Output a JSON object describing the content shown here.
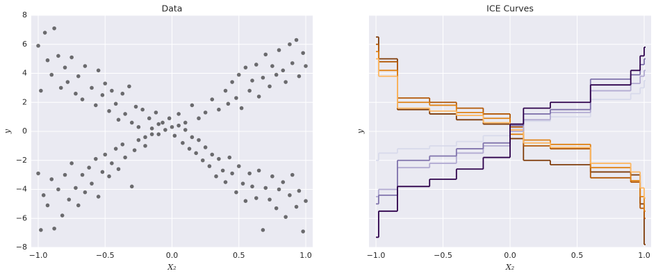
{
  "chart_data": [
    {
      "type": "scatter",
      "title": "Data",
      "xlabel": "X₂",
      "ylabel": "y",
      "xlim": [
        -1.052,
        1.052
      ],
      "ylim": [
        -8,
        8
      ],
      "grid": true,
      "point_color": "#000000",
      "point_opacity": 0.55,
      "show_ytick_labels": true,
      "xticks": [
        {
          "value": -1,
          "label": "−1.0"
        },
        {
          "value": -0.5,
          "label": "−0.5"
        },
        {
          "value": 0,
          "label": "0.0"
        },
        {
          "value": 0.5,
          "label": "0.5"
        },
        {
          "value": 1,
          "label": "1.0"
        }
      ],
      "yticks": [
        {
          "value": -8,
          "label": "−8"
        },
        {
          "value": -6,
          "label": "−6"
        },
        {
          "value": -4,
          "label": "−4"
        },
        {
          "value": -2,
          "label": "−2"
        },
        0,
        2,
        4,
        6,
        8
      ],
      "x": [
        -1.0,
        -0.98,
        -0.95,
        -0.93,
        -0.9,
        -0.88,
        -0.85,
        -0.83,
        -0.8,
        -0.78,
        -0.75,
        -0.72,
        -0.7,
        -0.67,
        -0.65,
        -0.6,
        -0.57,
        -0.55,
        -0.52,
        -0.5,
        -0.47,
        -0.45,
        -0.42,
        -0.4,
        -0.37,
        -0.35,
        -0.32,
        -0.3,
        -0.27,
        -0.25,
        -0.22,
        -0.2,
        -0.17,
        -0.15,
        -0.12,
        -0.1,
        -0.07,
        -0.05,
        -0.02,
        0.02,
        0.05,
        0.08,
        0.1,
        0.13,
        0.15,
        0.18,
        0.2,
        0.23,
        0.25,
        0.28,
        0.3,
        0.33,
        0.35,
        0.38,
        0.4,
        0.43,
        0.45,
        0.48,
        0.5,
        0.53,
        0.55,
        0.58,
        0.6,
        0.63,
        0.65,
        0.68,
        0.7,
        0.73,
        0.75,
        0.78,
        0.8,
        0.83,
        0.85,
        0.88,
        0.9,
        0.93,
        0.95,
        0.98,
        1.0,
        -1.0,
        -0.98,
        -0.96,
        -0.93,
        -0.9,
        -0.88,
        -0.85,
        -0.82,
        -0.8,
        -0.77,
        -0.75,
        -0.72,
        -0.7,
        -0.67,
        -0.65,
        -0.62,
        -0.6,
        -0.57,
        -0.55,
        -0.52,
        -0.5,
        -0.47,
        -0.45,
        -0.42,
        -0.4,
        -0.37,
        -0.35,
        -0.3,
        -0.28,
        -0.25,
        -0.2,
        -0.15,
        -0.1,
        0.0,
        0.05,
        0.1,
        0.15,
        0.2,
        0.25,
        0.3,
        0.35,
        0.4,
        0.42,
        0.45,
        0.48,
        0.5,
        0.52,
        0.55,
        0.58,
        0.6,
        0.63,
        0.65,
        0.68,
        0.7,
        0.73,
        0.75,
        0.78,
        0.8,
        0.83,
        0.85,
        0.88,
        0.9,
        0.93,
        0.95,
        0.98,
        1.0
      ],
      "values": [
        5.9,
        2.8,
        6.8,
        4.9,
        3.9,
        7.1,
        5.2,
        3.0,
        4.4,
        3.4,
        5.1,
        2.6,
        3.8,
        2.2,
        4.5,
        3.0,
        1.8,
        4.2,
        2.5,
        3.3,
        1.4,
        2.8,
        1.9,
        0.8,
        2.6,
        1.2,
        3.1,
        0.6,
        1.7,
        0.3,
        1.5,
        -0.4,
        0.9,
        0.2,
        1.3,
        -0.2,
        0.6,
        0.1,
        0.9,
        -0.3,
        0.4,
        -0.8,
        0.1,
        -1.2,
        -0.4,
        -1.5,
        -0.6,
        -2.0,
        -1.1,
        -2.4,
        -1.6,
        -3.1,
        -1.9,
        -2.7,
        -3.5,
        -1.8,
        -2.9,
        -4.2,
        -2.4,
        -3.6,
        -4.8,
        -2.9,
        -3.8,
        -4.6,
        -2.7,
        -6.8,
        -3.9,
        -4.7,
        -3.1,
        -5.3,
        -4.0,
        -3.5,
        -5.9,
        -4.4,
        -3.0,
        -5.2,
        -4.1,
        -6.9,
        -4.8,
        -2.9,
        -6.8,
        -4.4,
        -5.1,
        -3.3,
        -6.7,
        -4.0,
        -5.8,
        -3.0,
        -4.7,
        -2.2,
        -3.9,
        -5.1,
        -3.0,
        -4.2,
        -2.5,
        -3.6,
        -1.9,
        -4.5,
        -2.8,
        -1.6,
        -3.1,
        -2.2,
        -1.2,
        -2.6,
        -0.9,
        -1.8,
        -3.8,
        -1.3,
        -0.6,
        -1.0,
        -0.2,
        0.5,
        0.3,
        1.2,
        0.6,
        1.8,
        0.9,
        1.3,
        2.2,
        1.5,
        2.8,
        1.9,
        3.4,
        2.3,
        3.9,
        1.6,
        4.4,
        2.8,
        3.5,
        4.6,
        2.4,
        3.7,
        5.3,
        3.1,
        4.5,
        3.9,
        5.6,
        4.2,
        3.4,
        6.0,
        4.7,
        6.3,
        3.8,
        5.4,
        4.5
      ]
    },
    {
      "type": "step",
      "title": "ICE Curves",
      "xlabel": "X₂",
      "ylabel": "y",
      "xlim": [
        -1.052,
        1.052
      ],
      "ylim": [
        -8,
        8
      ],
      "grid": true,
      "show_ytick_labels": false,
      "xticks": [
        {
          "value": -1,
          "label": "−1.0"
        },
        {
          "value": -0.5,
          "label": "−0.5"
        },
        {
          "value": 0,
          "label": "0.0"
        },
        {
          "value": 0.5,
          "label": "0.5"
        },
        {
          "value": 1,
          "label": "1.0"
        }
      ],
      "yticks": [
        -8,
        -6,
        -4,
        -2,
        0,
        2,
        4,
        6,
        8
      ],
      "x": [
        -1.0,
        -0.98,
        -0.84,
        -0.6,
        -0.4,
        -0.2,
        0.0,
        0.1,
        0.3,
        0.6,
        0.9,
        0.97,
        1.0
      ],
      "series": [
        {
          "color": "#7f3b08",
          "values": [
            6.5,
            5.0,
            1.5,
            1.2,
            0.8,
            0.5,
            -0.5,
            -2.0,
            -2.3,
            -2.8,
            -3.0,
            -5.0,
            -7.8
          ]
        },
        {
          "color": "#b35806",
          "values": [
            6.0,
            4.8,
            2.3,
            2.0,
            1.6,
            1.2,
            0.3,
            -1.0,
            -1.2,
            -3.2,
            -3.5,
            -5.3,
            -6.0
          ]
        },
        {
          "color": "#e08214",
          "values": [
            5.5,
            4.2,
            2.0,
            1.8,
            1.3,
            0.9,
            -0.2,
            -0.6,
            -0.9,
            -2.5,
            -3.4,
            -4.5,
            -5.5
          ]
        },
        {
          "color": "#fdb863",
          "values": [
            5.0,
            3.8,
            1.6,
            1.4,
            1.1,
            0.6,
            0.1,
            -0.8,
            -1.1,
            -2.2,
            -2.8,
            -3.9,
            -4.6
          ]
        },
        {
          "color": "#d8daeb",
          "values": [
            -2.0,
            -1.5,
            -1.2,
            -1.0,
            -0.7,
            -0.3,
            0.2,
            0.7,
            1.0,
            2.2,
            2.6,
            3.0,
            3.5
          ]
        },
        {
          "color": "#b2abd2",
          "values": [
            -4.5,
            -4.0,
            -2.5,
            -2.2,
            -1.5,
            -1.0,
            0.0,
            0.8,
            1.3,
            2.8,
            3.3,
            3.8,
            4.2
          ]
        },
        {
          "color": "#8073ac",
          "values": [
            -5.0,
            -4.4,
            -2.0,
            -1.7,
            -1.2,
            -0.8,
            0.4,
            1.2,
            1.5,
            3.6,
            3.9,
            4.6,
            5.0
          ]
        },
        {
          "color": "#2d004b",
          "values": [
            -7.3,
            -5.5,
            -3.8,
            -3.3,
            -2.6,
            -1.8,
            0.5,
            1.6,
            2.0,
            3.2,
            4.2,
            5.2,
            5.8
          ]
        }
      ]
    }
  ]
}
